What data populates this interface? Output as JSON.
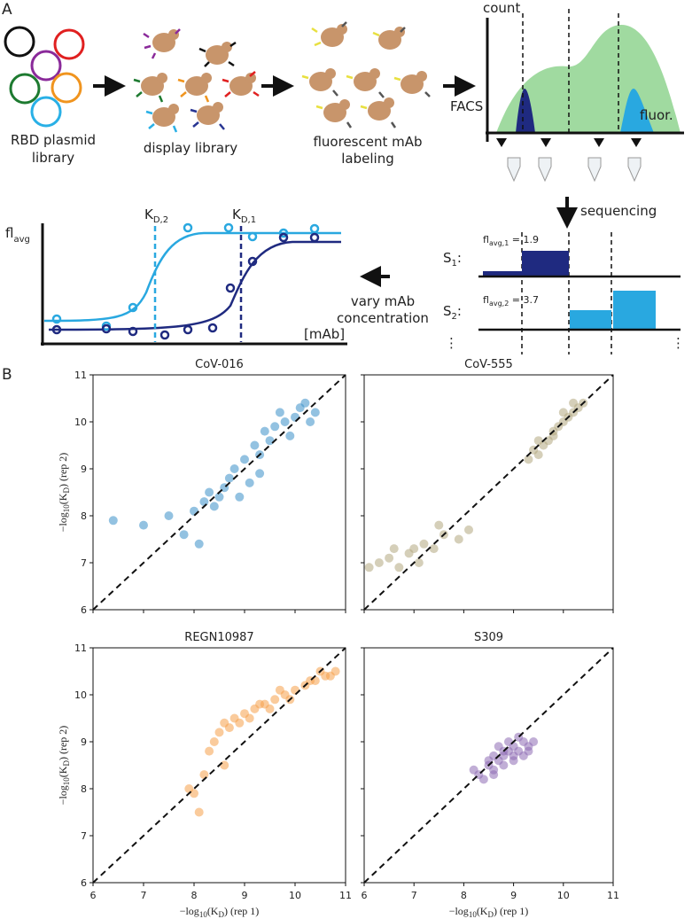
{
  "panel_labels": {
    "a": "A",
    "b": "B"
  },
  "schematic": {
    "plasmid": [
      "RBD plasmid",
      "library"
    ],
    "display": "display library",
    "labeling": [
      "fluorescent mAb",
      "labeling"
    ],
    "facs": "FACS",
    "count": "count",
    "fluor": "fluor.",
    "sequencing": "sequencing",
    "s1": {
      "main": "S",
      "sub": "1",
      "suffix": ":"
    },
    "s2": {
      "main": "S",
      "sub": "2",
      "suffix": ":"
    },
    "fl1": {
      "main": "fl",
      "sub": "avg,1",
      "suffix": " = 1.9"
    },
    "fl2": {
      "main": "fl",
      "sub": "avg,2",
      "suffix": " = 3.7"
    },
    "ellipsis": "⋮",
    "vary": [
      "vary mAb",
      "concentration"
    ],
    "flavg": {
      "main": "fl",
      "sub": "avg"
    },
    "kd2": {
      "main": "K",
      "sub": "D,2"
    },
    "kd1": {
      "main": "K",
      "sub": "D,1"
    },
    "mab": "[mAb]"
  },
  "chart_data": [
    {
      "type": "scatter",
      "title": "CoV-016",
      "color": "#3a8fc9",
      "ylabel": {
        "prefix": "−log",
        "sub": "10",
        "mid": "(K",
        "sub2": "D",
        "suffix": ") (rep 2)"
      },
      "xlim": [
        6,
        11
      ],
      "ylim": [
        6,
        11
      ],
      "xticks": [
        6,
        7,
        8,
        9,
        10,
        11
      ],
      "yticks": [
        6,
        7,
        8,
        9,
        10,
        11
      ],
      "x": [
        6.4,
        7.0,
        7.5,
        7.8,
        8.0,
        8.2,
        8.3,
        8.4,
        8.5,
        8.6,
        8.7,
        8.8,
        9.0,
        9.1,
        9.2,
        9.3,
        9.4,
        9.5,
        9.6,
        9.7,
        9.8,
        9.9,
        10.0,
        10.1,
        10.2,
        10.3,
        10.4,
        8.1,
        8.9,
        9.3
      ],
      "y": [
        7.9,
        7.8,
        8.0,
        7.6,
        8.1,
        8.3,
        8.5,
        8.2,
        8.4,
        8.6,
        8.8,
        9.0,
        9.2,
        8.7,
        9.5,
        9.3,
        9.8,
        9.6,
        9.9,
        10.2,
        10.0,
        9.7,
        10.1,
        10.3,
        10.4,
        10.0,
        10.2,
        7.4,
        8.4,
        8.9
      ]
    },
    {
      "type": "scatter",
      "title": "CoV-555",
      "color": "#b3a880",
      "xlim": [
        6,
        11
      ],
      "ylim": [
        6,
        11
      ],
      "xticks": [
        6,
        7,
        8,
        9,
        10,
        11
      ],
      "yticks": [
        6,
        7,
        8,
        9,
        10,
        11
      ],
      "x": [
        6.1,
        6.3,
        6.5,
        6.7,
        6.9,
        7.0,
        7.2,
        7.4,
        7.6,
        7.9,
        8.1,
        6.6,
        7.1,
        7.5,
        9.3,
        9.4,
        9.5,
        9.6,
        9.7,
        9.8,
        9.9,
        10.0,
        10.1,
        10.2,
        10.3,
        10.4,
        9.5,
        9.8,
        10.0,
        10.2
      ],
      "y": [
        6.9,
        7.0,
        7.1,
        6.9,
        7.2,
        7.3,
        7.4,
        7.3,
        7.6,
        7.5,
        7.7,
        7.3,
        7.0,
        7.8,
        9.2,
        9.4,
        9.3,
        9.5,
        9.6,
        9.7,
        9.9,
        10.0,
        10.1,
        10.2,
        10.3,
        10.4,
        9.6,
        9.8,
        10.2,
        10.4
      ]
    },
    {
      "type": "scatter",
      "title": "REGN10987",
      "color": "#f5a04a",
      "ylabel": {
        "prefix": "−log",
        "sub": "10",
        "mid": "(K",
        "sub2": "D",
        "suffix": ") (rep 2)"
      },
      "xlabel": {
        "prefix": "−log",
        "sub": "10",
        "mid": "(K",
        "sub2": "D",
        "suffix": ") (rep 1)"
      },
      "xlim": [
        6,
        11
      ],
      "ylim": [
        6,
        11
      ],
      "xticks": [
        6,
        7,
        8,
        9,
        10,
        11
      ],
      "yticks": [
        6,
        7,
        8,
        9,
        10,
        11
      ],
      "x": [
        7.9,
        8.0,
        8.2,
        8.3,
        8.5,
        8.6,
        8.8,
        9.0,
        9.2,
        9.4,
        9.6,
        9.8,
        10.0,
        10.2,
        10.4,
        10.6,
        10.8,
        8.4,
        8.7,
        9.1,
        9.5,
        9.9,
        10.3,
        8.1,
        8.9,
        9.3,
        8.6,
        10.7,
        10.5,
        9.7
      ],
      "y": [
        8.0,
        7.9,
        8.3,
        8.8,
        9.2,
        9.4,
        9.5,
        9.6,
        9.7,
        9.8,
        9.9,
        10.0,
        10.1,
        10.2,
        10.3,
        10.4,
        10.5,
        9.0,
        9.3,
        9.5,
        9.7,
        9.9,
        10.3,
        7.5,
        9.4,
        9.8,
        8.5,
        10.4,
        10.5,
        10.1
      ]
    },
    {
      "type": "scatter",
      "title": "S309",
      "color": "#8e6bb5",
      "xlabel": {
        "prefix": "−log",
        "sub": "10",
        "mid": "(K",
        "sub2": "D",
        "suffix": ") (rep 1)"
      },
      "xlim": [
        6,
        11
      ],
      "ylim": [
        6,
        11
      ],
      "xticks": [
        6,
        7,
        8,
        9,
        10,
        11
      ],
      "yticks": [
        6,
        7,
        8,
        9,
        10,
        11
      ],
      "x": [
        8.3,
        8.5,
        8.6,
        8.7,
        8.8,
        8.9,
        9.0,
        9.1,
        9.2,
        9.3,
        8.4,
        8.6,
        8.8,
        9.0,
        9.2,
        8.7,
        8.9,
        9.1,
        8.5,
        9.3,
        8.2,
        9.4,
        8.8,
        9.0,
        8.6
      ],
      "y": [
        8.3,
        8.5,
        8.4,
        8.6,
        8.7,
        8.8,
        8.9,
        8.8,
        9.0,
        8.9,
        8.2,
        8.7,
        8.5,
        8.6,
        8.7,
        8.9,
        9.0,
        9.1,
        8.6,
        8.8,
        8.4,
        9.0,
        8.8,
        8.7,
        8.3
      ]
    }
  ]
}
